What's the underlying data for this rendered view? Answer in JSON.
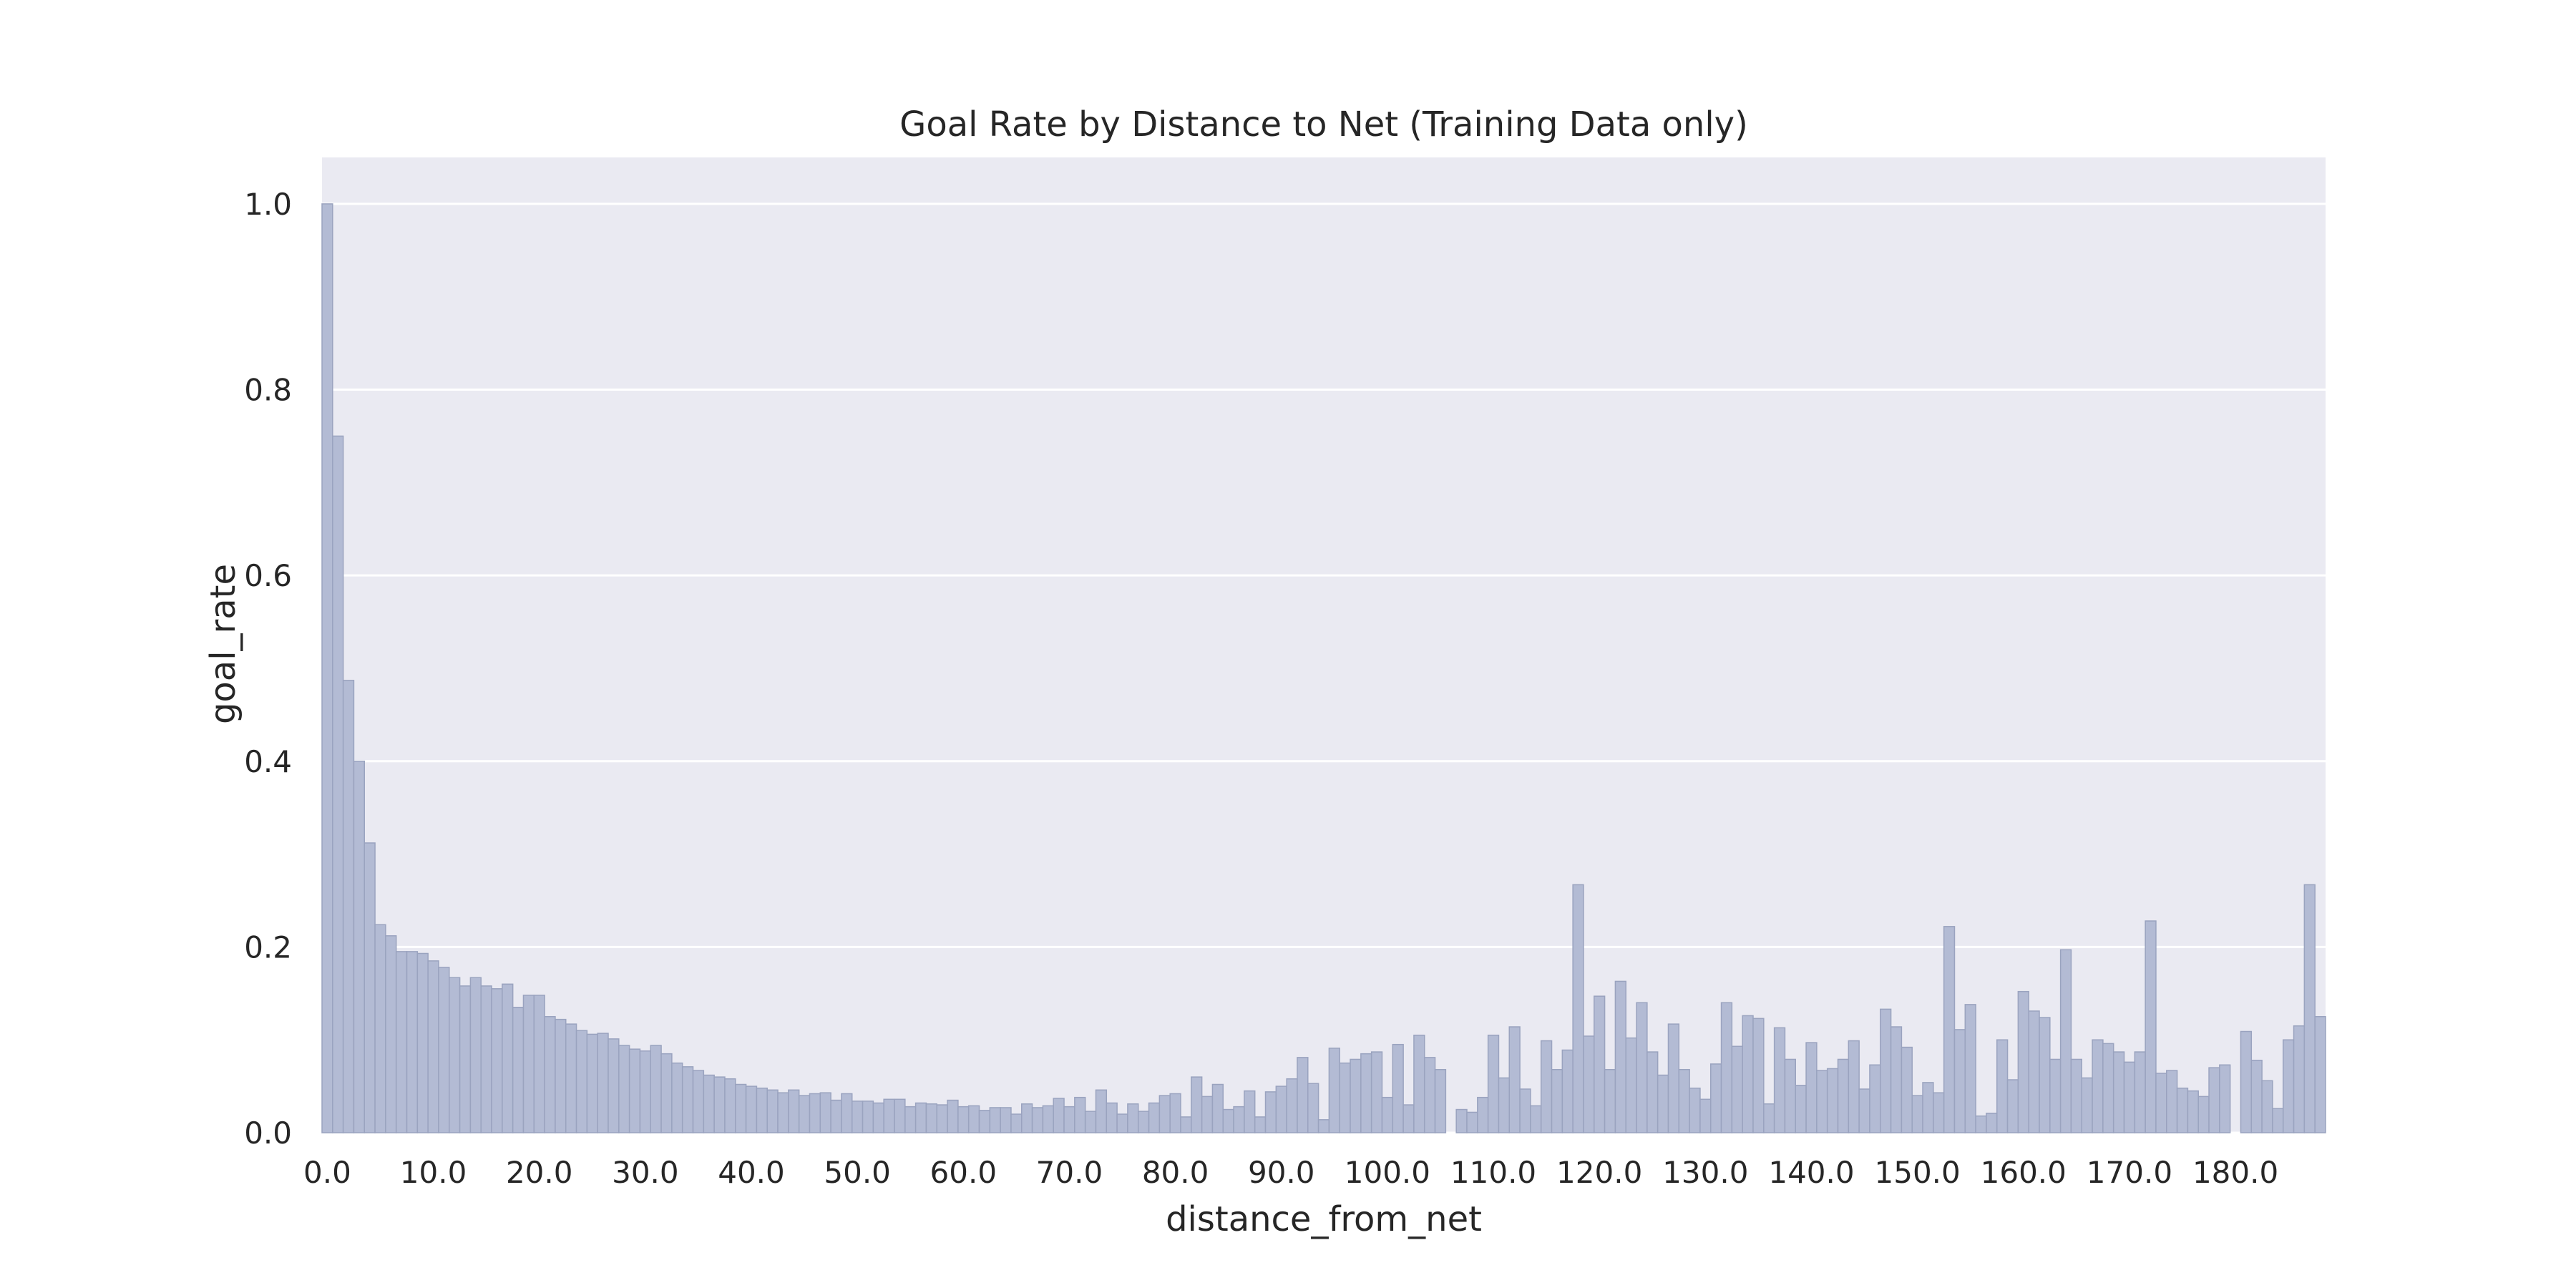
{
  "chart_data": {
    "type": "bar",
    "title": "Goal Rate by Distance to Net (Training Data only)",
    "xlabel": "distance_from_net",
    "ylabel": "goal_rate",
    "ylim": [
      0,
      1.05
    ],
    "xlim": [
      -0.5,
      188.5
    ],
    "x_ticks": [
      0,
      10,
      20,
      30,
      40,
      50,
      60,
      70,
      80,
      90,
      100,
      110,
      120,
      130,
      140,
      150,
      160,
      170,
      180
    ],
    "x_tick_labels": [
      "0.0",
      "10.0",
      "20.0",
      "30.0",
      "40.0",
      "50.0",
      "60.0",
      "70.0",
      "80.0",
      "90.0",
      "100.0",
      "110.0",
      "120.0",
      "130.0",
      "140.0",
      "150.0",
      "160.0",
      "170.0",
      "180.0"
    ],
    "y_ticks": [
      0.0,
      0.2,
      0.4,
      0.6,
      0.8,
      1.0
    ],
    "y_tick_labels": [
      "0.0",
      "0.2",
      "0.4",
      "0.6",
      "0.8",
      "1.0"
    ],
    "grid": true,
    "background": "#eaeaf2",
    "bar_color": "#b3bbd4",
    "x": [
      0,
      1,
      2,
      3,
      4,
      5,
      6,
      7,
      8,
      9,
      10,
      11,
      12,
      13,
      14,
      15,
      16,
      17,
      18,
      19,
      20,
      21,
      22,
      23,
      24,
      25,
      26,
      27,
      28,
      29,
      30,
      31,
      32,
      33,
      34,
      35,
      36,
      37,
      38,
      39,
      40,
      41,
      42,
      43,
      44,
      45,
      46,
      47,
      48,
      49,
      50,
      51,
      52,
      53,
      54,
      55,
      56,
      57,
      58,
      59,
      60,
      61,
      62,
      63,
      64,
      65,
      66,
      67,
      68,
      69,
      70,
      71,
      72,
      73,
      74,
      75,
      76,
      77,
      78,
      79,
      80,
      81,
      82,
      83,
      84,
      85,
      86,
      87,
      88,
      89,
      90,
      91,
      92,
      93,
      94,
      95,
      96,
      97,
      98,
      99,
      100,
      101,
      102,
      103,
      104,
      105,
      106,
      107,
      108,
      109,
      110,
      111,
      112,
      113,
      114,
      115,
      116,
      117,
      118,
      119,
      120,
      121,
      122,
      123,
      124,
      125,
      126,
      127,
      128,
      129,
      130,
      131,
      132,
      133,
      134,
      135,
      136,
      137,
      138,
      139,
      140,
      141,
      142,
      143,
      144,
      145,
      146,
      147,
      148,
      149,
      150,
      151,
      152,
      153,
      154,
      155,
      156,
      157,
      158,
      159,
      160,
      161,
      162,
      163,
      164,
      165,
      166,
      167,
      168,
      169,
      170,
      171,
      172,
      173,
      174,
      175,
      176,
      177,
      178,
      179,
      180,
      181,
      182,
      183,
      184,
      185,
      186,
      187,
      188
    ],
    "values": [
      1.0,
      0.75,
      0.487,
      0.4,
      0.312,
      0.224,
      0.212,
      0.195,
      0.195,
      0.193,
      0.185,
      0.178,
      0.167,
      0.158,
      0.167,
      0.158,
      0.155,
      0.16,
      0.135,
      0.148,
      0.148,
      0.125,
      0.122,
      0.117,
      0.11,
      0.106,
      0.107,
      0.101,
      0.094,
      0.09,
      0.088,
      0.094,
      0.085,
      0.075,
      0.071,
      0.067,
      0.062,
      0.06,
      0.058,
      0.052,
      0.05,
      0.048,
      0.046,
      0.043,
      0.046,
      0.04,
      0.042,
      0.043,
      0.035,
      0.042,
      0.034,
      0.034,
      0.032,
      0.036,
      0.036,
      0.028,
      0.032,
      0.031,
      0.03,
      0.035,
      0.028,
      0.029,
      0.024,
      0.027,
      0.027,
      0.02,
      0.031,
      0.027,
      0.029,
      0.037,
      0.028,
      0.038,
      0.023,
      0.046,
      0.032,
      0.02,
      0.031,
      0.023,
      0.032,
      0.04,
      0.042,
      0.017,
      0.06,
      0.039,
      0.052,
      0.025,
      0.028,
      0.045,
      0.017,
      0.044,
      0.05,
      0.058,
      0.081,
      0.053,
      0.014,
      0.091,
      0.075,
      0.079,
      0.085,
      0.087,
      0.038,
      0.095,
      0.03,
      0.105,
      0.081,
      0.068,
      0.0,
      0.025,
      0.022,
      0.038,
      0.105,
      0.059,
      0.114,
      0.047,
      0.029,
      0.099,
      0.068,
      0.089,
      0.267,
      0.104,
      0.147,
      0.068,
      0.163,
      0.102,
      0.14,
      0.087,
      0.062,
      0.117,
      0.068,
      0.048,
      0.036,
      0.074,
      0.14,
      0.093,
      0.126,
      0.123,
      0.031,
      0.113,
      0.079,
      0.051,
      0.097,
      0.067,
      0.069,
      0.079,
      0.099,
      0.047,
      0.073,
      0.133,
      0.114,
      0.092,
      0.04,
      0.054,
      0.043,
      0.222,
      0.111,
      0.138,
      0.018,
      0.021,
      0.1,
      0.057,
      0.152,
      0.131,
      0.124,
      0.079,
      0.197,
      0.079,
      0.059,
      0.1,
      0.096,
      0.087,
      0.076,
      0.087,
      0.228,
      0.064,
      0.067,
      0.048,
      0.045,
      0.039,
      0.07,
      0.073,
      0.0,
      0.109,
      0.078,
      0.056,
      0.026,
      0.1,
      0.115,
      0.267,
      0.125
    ]
  }
}
